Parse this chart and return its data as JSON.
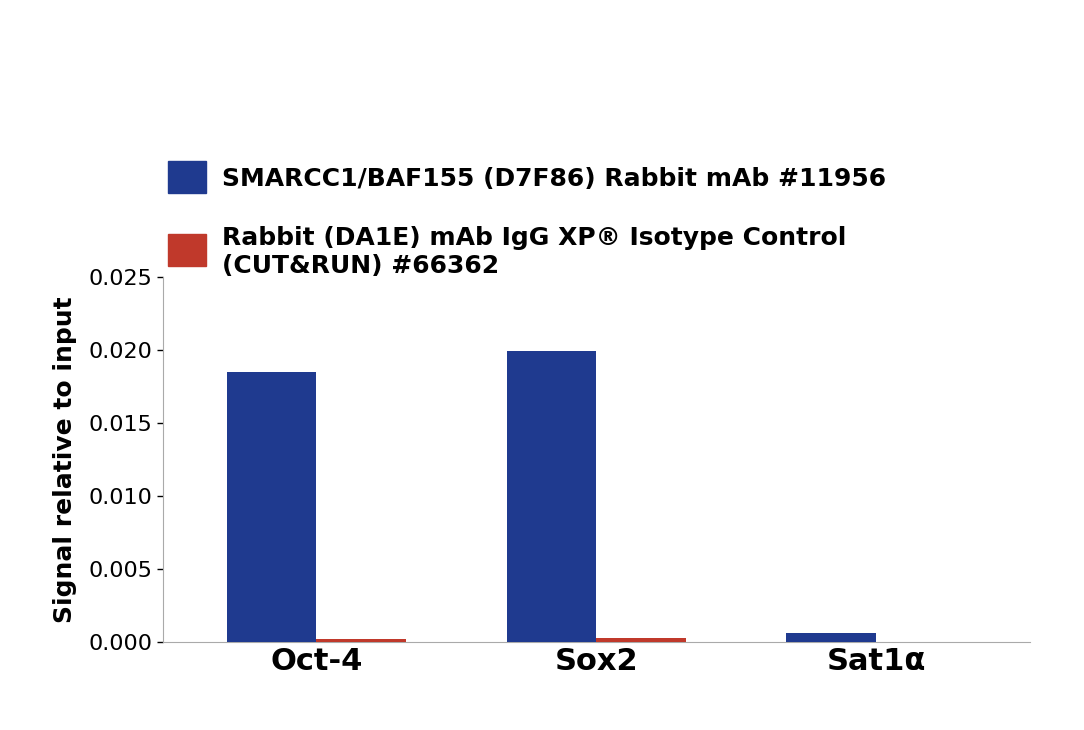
{
  "categories": [
    "Oct-4",
    "Sox2",
    "Sat1α"
  ],
  "blue_values": [
    0.01855,
    0.01995,
    0.00065
  ],
  "red_values": [
    0.0002,
    0.0003,
    0.0
  ],
  "blue_color": "#1F3A8F",
  "red_color": "#C0392B",
  "ylabel": "Signal relative to input",
  "ylim": [
    0,
    0.025
  ],
  "yticks": [
    0,
    0.005,
    0.01,
    0.015,
    0.02,
    0.025
  ],
  "legend_blue": "SMARCC1/BAF155 (D7F86) Rabbit mAb #11956",
  "legend_red": "Rabbit (DA1E) mAb IgG XP® Isotype Control\n(CUT&RUN) #66362",
  "bar_width": 0.32,
  "background_color": "#ffffff",
  "legend_fontsize": 18,
  "ylabel_fontsize": 18,
  "xtick_fontsize": 22,
  "ytick_fontsize": 16
}
